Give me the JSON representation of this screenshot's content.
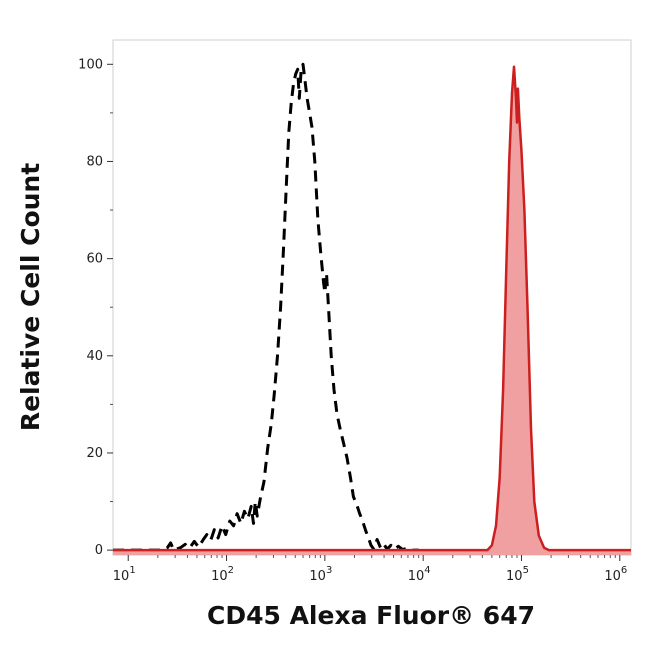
{
  "chart_data": {
    "type": "area",
    "title": "",
    "xlabel": "CD45 Alexa Fluor® 647",
    "ylabel": "Relative Cell Count",
    "x_scale": "log",
    "xlim": [
      7,
      1300000
    ],
    "ylim": [
      -1,
      105
    ],
    "grid": false,
    "legend": "none",
    "x_ticks": [
      {
        "value": 10,
        "base": "10",
        "exp": "1"
      },
      {
        "value": 100,
        "base": "10",
        "exp": "2"
      },
      {
        "value": 1000,
        "base": "10",
        "exp": "3"
      },
      {
        "value": 10000,
        "base": "10",
        "exp": "4"
      },
      {
        "value": 100000,
        "base": "10",
        "exp": "5"
      },
      {
        "value": 1000000,
        "base": "10",
        "exp": "6"
      }
    ],
    "y_ticks": [
      {
        "value": 0,
        "label": "0"
      },
      {
        "value": 20,
        "label": "20"
      },
      {
        "value": 40,
        "label": "40"
      },
      {
        "value": 60,
        "label": "60"
      },
      {
        "value": 80,
        "label": "80"
      },
      {
        "value": 100,
        "label": "100"
      }
    ],
    "series": [
      {
        "style": "dashed-line",
        "color": "#000000",
        "points": [
          [
            7,
            0
          ],
          [
            22,
            0
          ],
          [
            25,
            0.5
          ],
          [
            27,
            1.5
          ],
          [
            29,
            0
          ],
          [
            34,
            0.5
          ],
          [
            38,
            1.2
          ],
          [
            42,
            0.4
          ],
          [
            47,
            1.8
          ],
          [
            52,
            0.6
          ],
          [
            58,
            2.2
          ],
          [
            63,
            3.2
          ],
          [
            69,
            2.0
          ],
          [
            75,
            4.2
          ],
          [
            82,
            2.5
          ],
          [
            90,
            5.0
          ],
          [
            98,
            3.2
          ],
          [
            108,
            6.0
          ],
          [
            118,
            5.0
          ],
          [
            128,
            7.5
          ],
          [
            140,
            5.5
          ],
          [
            152,
            8.0
          ],
          [
            165,
            6.5
          ],
          [
            178,
            9.0
          ],
          [
            188,
            5.5
          ],
          [
            196,
            10.0
          ],
          [
            205,
            7.0
          ],
          [
            220,
            10.5
          ],
          [
            240,
            14.0
          ],
          [
            262,
            21.0
          ],
          [
            285,
            26.0
          ],
          [
            305,
            32.0
          ],
          [
            330,
            40.0
          ],
          [
            355,
            50.0
          ],
          [
            380,
            62.0
          ],
          [
            405,
            75.0
          ],
          [
            430,
            86.0
          ],
          [
            455,
            92.0
          ],
          [
            480,
            96.0
          ],
          [
            505,
            98.0
          ],
          [
            530,
            99.0
          ],
          [
            550,
            93.0
          ],
          [
            575,
            99.0
          ],
          [
            600,
            100.0
          ],
          [
            625,
            97.0
          ],
          [
            660,
            93.0
          ],
          [
            700,
            90.0
          ],
          [
            740,
            87.0
          ],
          [
            790,
            80.0
          ],
          [
            850,
            68.0
          ],
          [
            910,
            61.0
          ],
          [
            970,
            55.0
          ],
          [
            1000,
            53.0
          ],
          [
            1040,
            57.0
          ],
          [
            1090,
            50.0
          ],
          [
            1160,
            40.0
          ],
          [
            1240,
            33.0
          ],
          [
            1330,
            28.0
          ],
          [
            1430,
            25.0
          ],
          [
            1550,
            22.0
          ],
          [
            1680,
            19.0
          ],
          [
            1820,
            15.0
          ],
          [
            1950,
            11.0
          ],
          [
            2100,
            9.5
          ],
          [
            2260,
            7.5
          ],
          [
            2420,
            6.0
          ],
          [
            2600,
            4.0
          ],
          [
            2780,
            2.5
          ],
          [
            2950,
            1.0
          ],
          [
            3150,
            0.2
          ],
          [
            3400,
            2.2
          ],
          [
            3700,
            0.4
          ],
          [
            4000,
            1.2
          ],
          [
            4300,
            0.2
          ],
          [
            4700,
            1.0
          ],
          [
            5100,
            0.2
          ],
          [
            5600,
            0.8
          ],
          [
            6200,
            0.1
          ],
          [
            7000,
            0.5
          ],
          [
            7800,
            0.0
          ],
          [
            9000,
            0.0
          ]
        ]
      },
      {
        "style": "filled-area",
        "color": "#cc1f1f",
        "fill": "#f0a0a0",
        "points": [
          [
            7,
            0
          ],
          [
            45000,
            0
          ],
          [
            50000,
            1.0
          ],
          [
            55000,
            5.0
          ],
          [
            60000,
            15.0
          ],
          [
            65000,
            33.0
          ],
          [
            70000,
            58.0
          ],
          [
            75000,
            80.0
          ],
          [
            80000,
            94.0
          ],
          [
            84000,
            99.5
          ],
          [
            88000,
            93.0
          ],
          [
            90000,
            88.0
          ],
          [
            92000,
            95.0
          ],
          [
            95000,
            89.0
          ],
          [
            100000,
            82.0
          ],
          [
            107000,
            70.0
          ],
          [
            115000,
            50.0
          ],
          [
            125000,
            25.0
          ],
          [
            135000,
            10.0
          ],
          [
            150000,
            3.0
          ],
          [
            170000,
            0.5
          ],
          [
            190000,
            0
          ],
          [
            1300000,
            0
          ]
        ]
      }
    ]
  }
}
